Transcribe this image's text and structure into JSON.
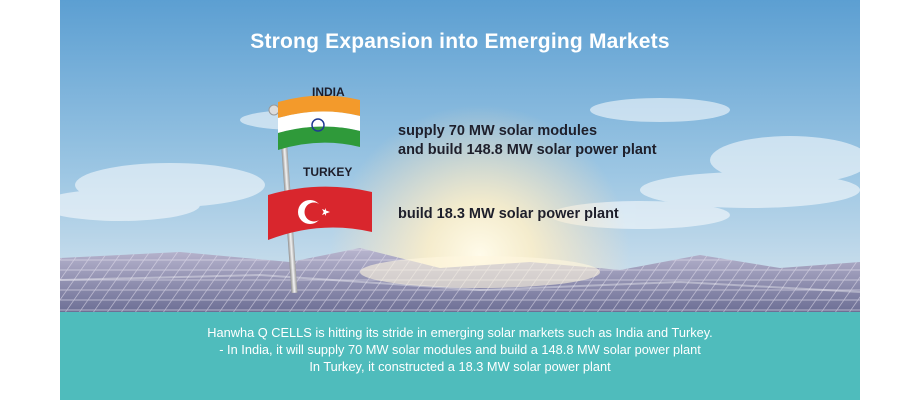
{
  "banner": {
    "title": "Strong Expansion into Emerging Markets",
    "flags": [
      {
        "country": "INDIA",
        "text_lines": [
          "supply 70 MW solar modules",
          "and build 148.8 MW solar power plant"
        ]
      },
      {
        "country": "TURKEY",
        "text_lines": [
          "build 18.3 MW solar power plant"
        ]
      }
    ],
    "caption": [
      "Hanwha Q CELLS is hitting its stride in emerging solar markets such as India and Turkey.",
      "- In India, it will supply 70 MW solar modules and build a 148.8 MW solar power plant",
      "In Turkey, it constructed a 18.3 MW solar power plant"
    ],
    "colors": {
      "sky_top": "#5c9fd2",
      "sky_bottom": "#bcd9ea",
      "caption_bg": "#4fbcbc",
      "india_saffron": "#f39a2b",
      "india_green": "#2f9a3a",
      "turkey_red": "#d9262d"
    }
  }
}
